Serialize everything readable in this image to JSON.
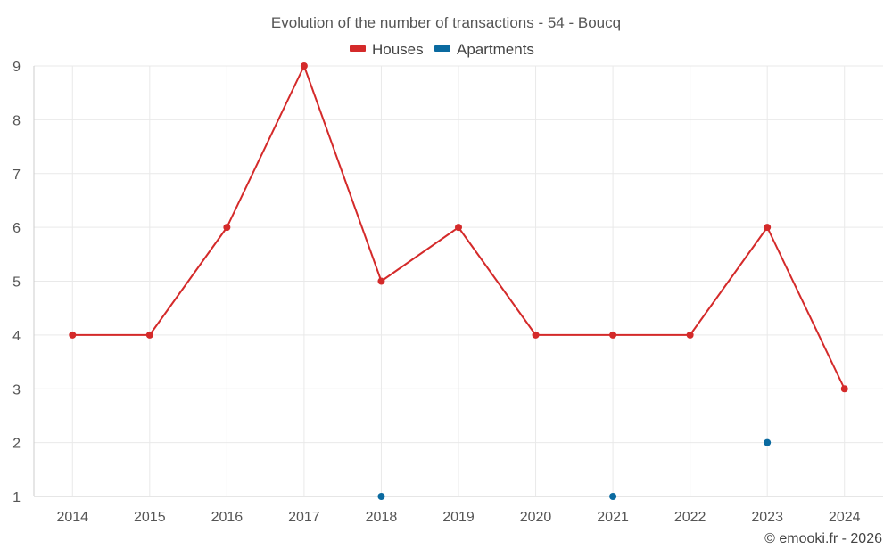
{
  "chart_data": {
    "type": "line",
    "title": "Evolution of the number of transactions - 54 - Boucq",
    "categories": [
      "2014",
      "2015",
      "2016",
      "2017",
      "2018",
      "2019",
      "2020",
      "2021",
      "2022",
      "2023",
      "2024"
    ],
    "series": [
      {
        "name": "Houses",
        "color": "#d42a2a",
        "values": [
          4,
          4,
          6,
          9,
          5,
          6,
          4,
          4,
          4,
          6,
          3
        ],
        "connect": true
      },
      {
        "name": "Apartments",
        "color": "#0a6aa0",
        "values": [
          null,
          null,
          null,
          null,
          1,
          null,
          null,
          1,
          null,
          2,
          null
        ],
        "connect": false
      }
    ],
    "ylim": [
      1,
      9
    ],
    "yticks": [
      "1",
      "2",
      "3",
      "4",
      "5",
      "6",
      "7",
      "8",
      "9"
    ],
    "xlabel": "",
    "ylabel": "",
    "grid": true,
    "legend_position": "top-center"
  },
  "credit": "© emooki.fr - 2026"
}
